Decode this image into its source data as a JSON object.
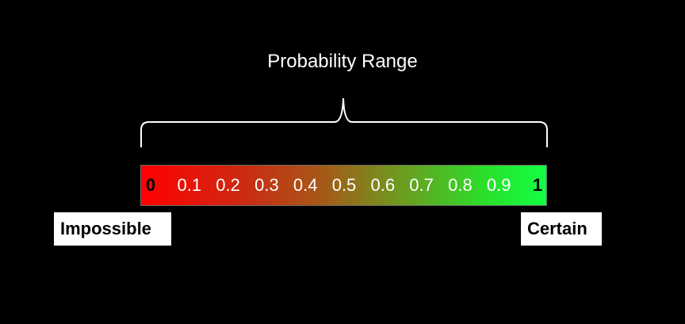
{
  "diagram": {
    "title": "Probability Range",
    "ticks": [
      {
        "label": "0",
        "value": 0
      },
      {
        "label": "0.1",
        "value": 0.1
      },
      {
        "label": "0.2",
        "value": 0.2
      },
      {
        "label": "0.3",
        "value": 0.3
      },
      {
        "label": "0.4",
        "value": 0.4
      },
      {
        "label": "0.5",
        "value": 0.5
      },
      {
        "label": "0.6",
        "value": 0.6
      },
      {
        "label": "0.7",
        "value": 0.7
      },
      {
        "label": "0.8",
        "value": 0.8
      },
      {
        "label": "0.9",
        "value": 0.9
      },
      {
        "label": "1",
        "value": 1
      }
    ],
    "low_label": "Impossible",
    "high_label": "Certain",
    "colors": {
      "low": "#ff0000",
      "high": "#11ff44",
      "background": "#000000"
    }
  }
}
